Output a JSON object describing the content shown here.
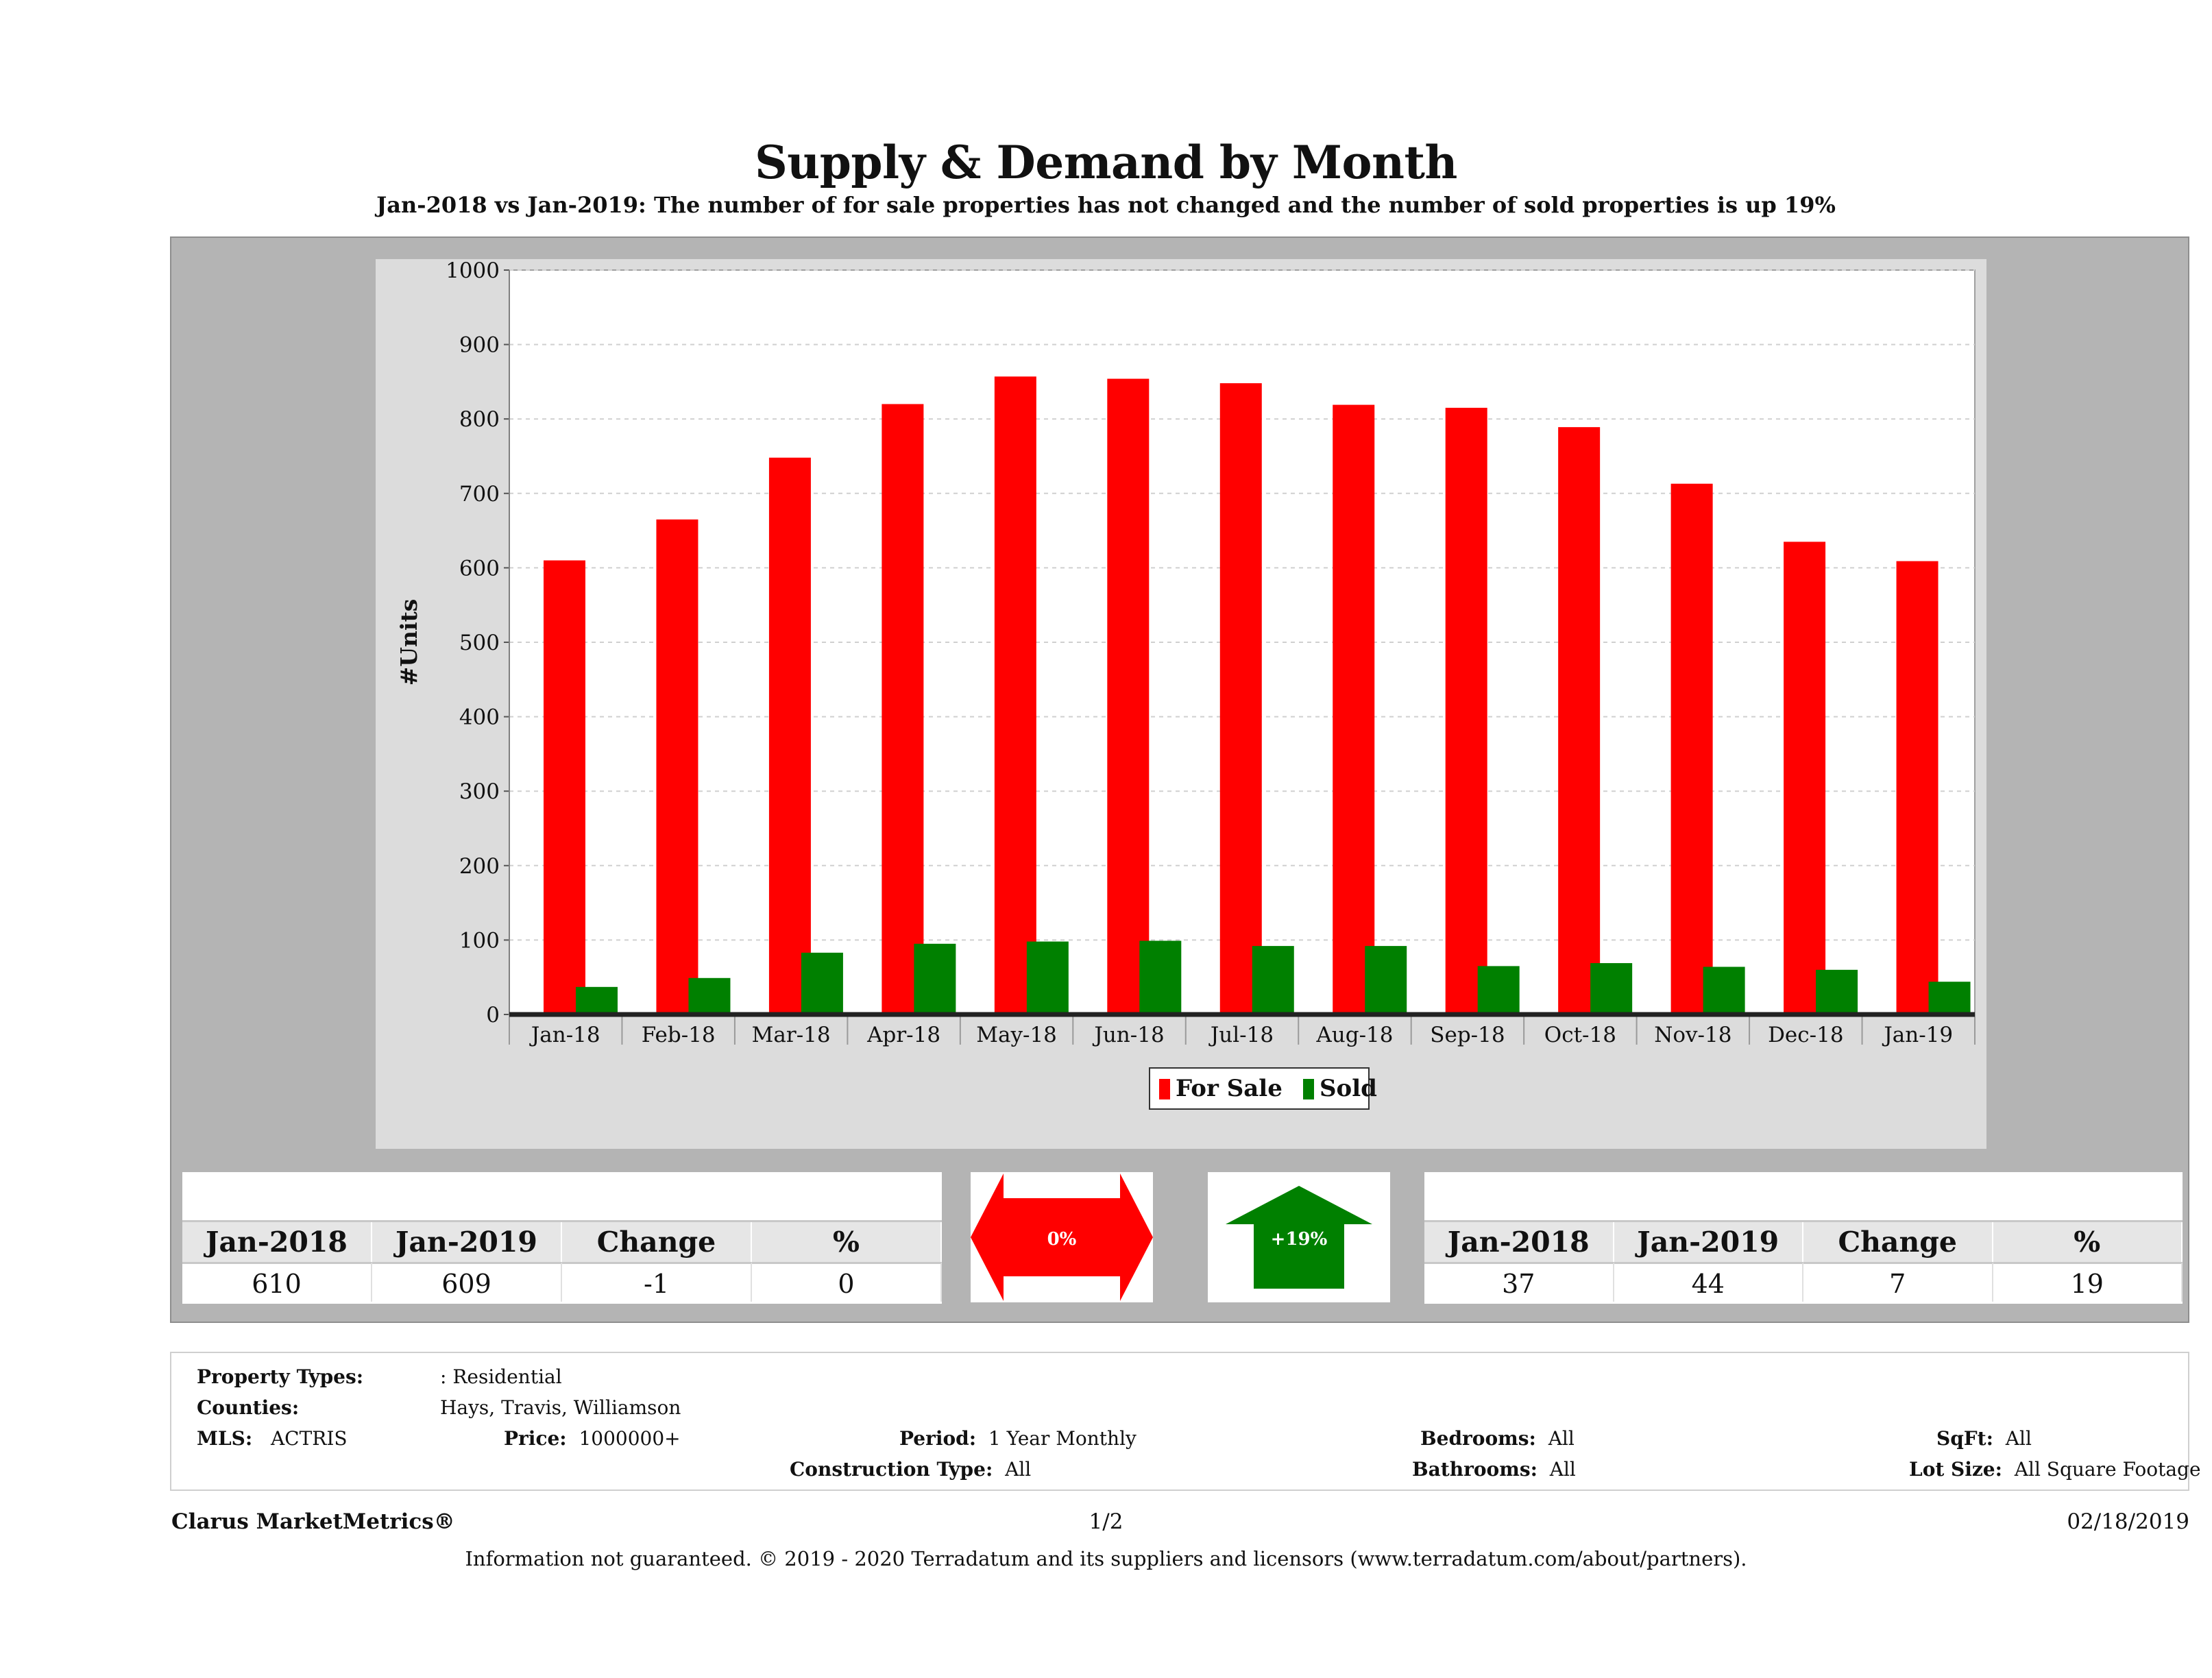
{
  "header": {
    "title": "Supply & Demand by Month",
    "subtitle": "Jan-2018 vs Jan-2019: The number of for sale properties has not changed and the number of sold properties is up 19%"
  },
  "chart_data": {
    "type": "bar",
    "title": "",
    "xlabel": "",
    "ylabel": "#Units",
    "ylim": [
      0,
      1000
    ],
    "yticks": [
      0,
      100,
      200,
      300,
      400,
      500,
      600,
      700,
      800,
      900,
      1000
    ],
    "categories": [
      "Jan-18",
      "Feb-18",
      "Mar-18",
      "Apr-18",
      "May-18",
      "Jun-18",
      "Jul-18",
      "Aug-18",
      "Sep-18",
      "Oct-18",
      "Nov-18",
      "Dec-18",
      "Jan-19"
    ],
    "series": [
      {
        "name": "For Sale",
        "color": "#ff0000",
        "values": [
          610,
          665,
          748,
          820,
          857,
          854,
          848,
          819,
          815,
          789,
          713,
          635,
          609
        ]
      },
      {
        "name": "Sold",
        "color": "#008000",
        "values": [
          37,
          49,
          83,
          95,
          98,
          99,
          92,
          92,
          65,
          69,
          64,
          60,
          44
        ]
      }
    ],
    "grid": true,
    "legend": "bottom-center"
  },
  "for_sale_stats": {
    "headers": [
      "Jan-2018",
      "Jan-2019",
      "Change",
      "%"
    ],
    "values": [
      "610",
      "609",
      "-1",
      "0"
    ]
  },
  "for_sale_indicator": {
    "label": "0%",
    "direction": "flat",
    "color": "#ff0000"
  },
  "sold_indicator": {
    "label": "+19%",
    "direction": "up",
    "color": "#008000"
  },
  "sold_stats": {
    "headers": [
      "Jan-2018",
      "Jan-2019",
      "Change",
      "%"
    ],
    "values": [
      "37",
      "44",
      "7",
      "19"
    ]
  },
  "criteria": {
    "property_types_label": "Property Types:",
    "property_types_value": ": Residential",
    "counties_label": "Counties:",
    "counties_value": "Hays, Travis, Williamson",
    "mls_label": "MLS:",
    "mls_value": "ACTRIS",
    "price_label": "Price:",
    "price_value": "1000000+",
    "period_label": "Period:",
    "period_value": "1 Year Monthly",
    "construction_label": "Construction Type:",
    "construction_value": "All",
    "bedrooms_label": "Bedrooms:",
    "bedrooms_value": "All",
    "bathrooms_label": "Bathrooms:",
    "bathrooms_value": "All",
    "sqft_label": "SqFt:",
    "sqft_value": "All",
    "lotsize_label": "Lot Size:",
    "lotsize_value": "All Square Footage"
  },
  "footer": {
    "brand": "Clarus MarketMetrics®",
    "page": "1/2",
    "date": "02/18/2019",
    "note": "Information not guaranteed. © 2019 - 2020 Terradatum and its suppliers and licensors (www.terradatum.com/about/partners)."
  }
}
